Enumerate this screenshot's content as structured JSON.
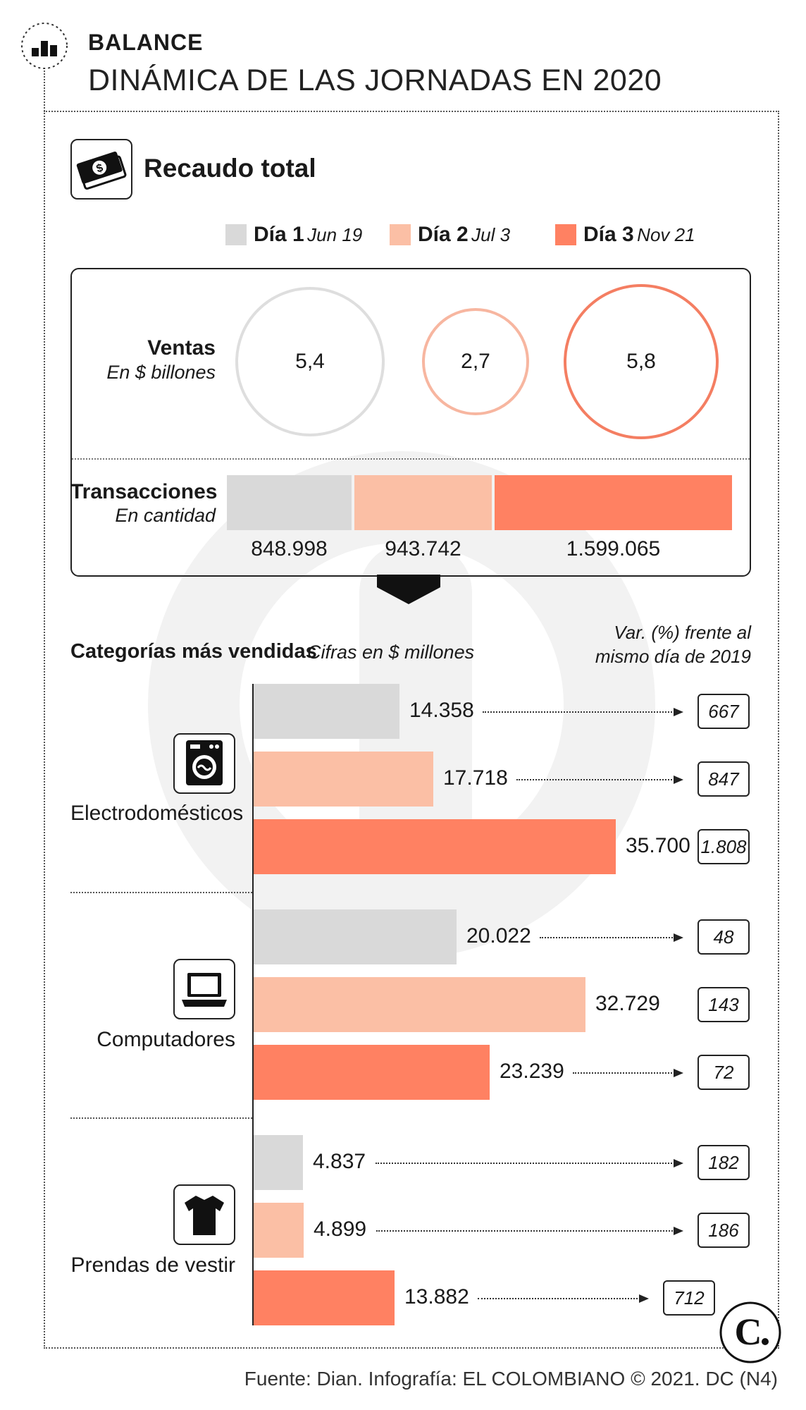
{
  "header": {
    "kicker": "BALANCE",
    "headline": "DINÁMICA DE LAS JORNADAS EN 2020"
  },
  "section": {
    "title": "Recaudo total",
    "icon": "money-icon"
  },
  "legend": [
    {
      "day": "Día 1",
      "date": "Jun 19",
      "color": "#d9d9d9"
    },
    {
      "day": "Día 2",
      "date": "Jul 3",
      "color": "#fbbfa5"
    },
    {
      "day": "Día 3",
      "date": "Nov 21",
      "color": "#ff8162"
    }
  ],
  "colors": {
    "day1": "#d9d9d9",
    "day2": "#fbbfa5",
    "day3": "#ff8162",
    "day1_stroke": "#dedede",
    "day2_stroke": "#f7b6a0",
    "day3_stroke": "#f47e62"
  },
  "ventas": {
    "label": "Ventas",
    "sublabel": "En $ billones",
    "values": [
      "5,4",
      "2,7",
      "5,8"
    ]
  },
  "transacciones": {
    "label": "Transacciones",
    "sublabel": "En cantidad",
    "values": [
      "848.998",
      "943.742",
      "1.599.065"
    ]
  },
  "categories_header": {
    "title": "Categorías más vendidas",
    "subtitle": "Cifras en $ millones",
    "var_note_line1": "Var. (%) frente al",
    "var_note_line2": "mismo día de 2019"
  },
  "chart_data": {
    "type": "bar",
    "title": "Categorías más vendidas",
    "subtitle": "Cifras en $ millones",
    "categories": [
      "Electrodomésticos",
      "Computadores",
      "Prendas de vestir"
    ],
    "series": [
      {
        "name": "Día 1",
        "values": [
          14358,
          20022,
          4837
        ],
        "labels": [
          "14.358",
          "20.022",
          "4.837"
        ],
        "variation": [
          "667",
          "48",
          "182"
        ]
      },
      {
        "name": "Día 2",
        "values": [
          17718,
          32729,
          4899
        ],
        "labels": [
          "17.718",
          "32.729",
          "4.899"
        ],
        "variation": [
          "847",
          "143",
          "186"
        ]
      },
      {
        "name": "Día 3",
        "values": [
          35700,
          23239,
          13882
        ],
        "labels": [
          "35.700",
          "23.239",
          "13.882"
        ],
        "variation": [
          "1.808",
          "72",
          "712"
        ]
      }
    ],
    "summary": {
      "ventas_billones": [
        5.4,
        2.7,
        5.8
      ],
      "transacciones": [
        848998,
        943742,
        1599065
      ]
    },
    "orientation": "horizontal",
    "xlim": [
      0,
      35700
    ],
    "grid": false,
    "legend_position": "top"
  },
  "icons": {
    "electrodomesticos": "washing-machine-icon",
    "computadores": "laptop-icon",
    "prendas": "t-shirt-icon"
  },
  "source": "Fuente: Dian. Infografía: EL COLOMBIANO © 2021. DC (N4)"
}
